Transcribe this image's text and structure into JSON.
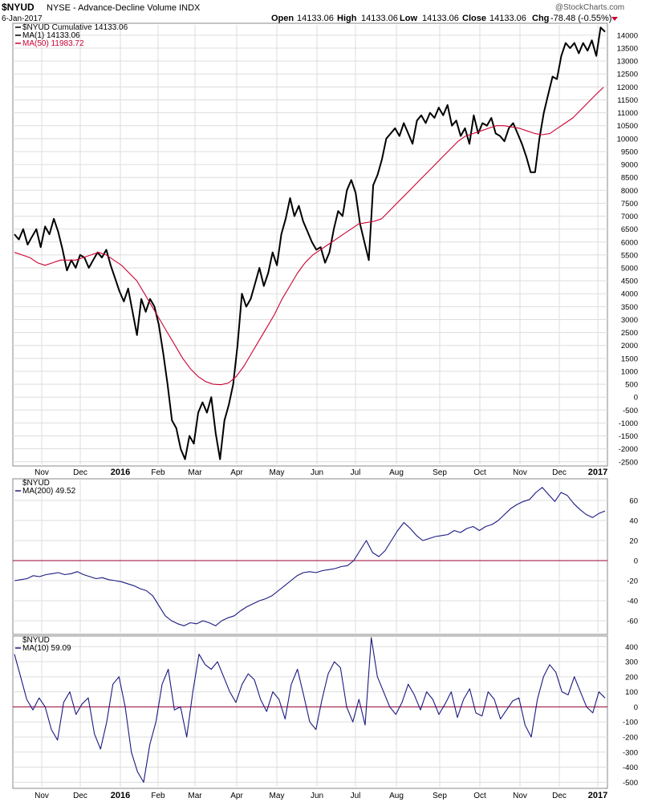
{
  "header": {
    "symbol": "$NYUD",
    "description": "NYSE - Advance-Decline Volume INDX",
    "date": "6-Jan-2017",
    "open_label": "Open",
    "open_value": "14133.06",
    "high_label": "High",
    "high_value": "14133.06",
    "low_label": "Low",
    "low_value": "14133.06",
    "close_label": "Close",
    "close_value": "14133.06",
    "chg_label": "Chg",
    "chg_value": "-78.48 (-0.55%)",
    "brand": "@StockCharts.com"
  },
  "colors": {
    "price": "#000000",
    "ma50": "#cc0033",
    "blue": "#1a1a80",
    "zero": "#990033",
    "grid": "#dddddd"
  },
  "chart_data": [
    {
      "type": "line",
      "panel": "main",
      "x_labels": [
        "Nov",
        "Dec",
        "2016",
        "Feb",
        "Mar",
        "Apr",
        "May",
        "Jun",
        "Jul",
        "Aug",
        "Sep",
        "Oct",
        "Nov",
        "Dec",
        "2017"
      ],
      "y_ticks": [
        14000,
        13500,
        13000,
        12500,
        12000,
        11500,
        11000,
        10500,
        10000,
        9500,
        9000,
        8500,
        8000,
        7500,
        7000,
        6500,
        6000,
        5500,
        5000,
        4500,
        4000,
        3500,
        3000,
        2500,
        2000,
        1500,
        1000,
        500,
        0,
        -500,
        -1000,
        -1500,
        -2000,
        -2500
      ],
      "ylim": [
        -2600,
        14400
      ],
      "legend": [
        {
          "label": "$NYUD Cumulative 14133.06"
        },
        {
          "label": "MA(1) 14133.06"
        },
        {
          "label": "MA(50) 11983.72"
        }
      ],
      "series": [
        {
          "name": "$NYUD Cumulative",
          "color": "#000000",
          "values": [
            6300,
            6100,
            6500,
            5900,
            6200,
            6500,
            5800,
            6600,
            6300,
            6900,
            6400,
            5700,
            4900,
            5300,
            5000,
            5500,
            5400,
            5000,
            5300,
            5600,
            5400,
            5700,
            5100,
            4600,
            4100,
            3700,
            4200,
            3300,
            2400,
            3800,
            3300,
            3800,
            3500,
            2800,
            1700,
            500,
            -900,
            -1200,
            -2000,
            -2400,
            -1500,
            -1800,
            -600,
            -200,
            -600,
            0,
            -1400,
            -2400,
            -900,
            -300,
            500,
            2000,
            4000,
            3500,
            3800,
            4400,
            5000,
            4300,
            4800,
            5600,
            5100,
            6300,
            6900,
            7700,
            7000,
            7400,
            6800,
            6400,
            6000,
            5700,
            5800,
            5200,
            5600,
            6500,
            7200,
            7000,
            8000,
            8400,
            7900,
            6700,
            6000,
            5300,
            8200,
            8600,
            9200,
            10000,
            10200,
            10400,
            10100,
            10600,
            10200,
            9800,
            10700,
            10900,
            10600,
            11000,
            10800,
            11200,
            10900,
            11300,
            10500,
            10700,
            10100,
            10400,
            9800,
            10900,
            10200,
            10600,
            10500,
            10800,
            10200,
            10100,
            9900,
            10400,
            10600,
            10200,
            9800,
            9300,
            8700,
            8700,
            10000,
            11000,
            11700,
            12400,
            12300,
            13200,
            13700,
            13500,
            13700,
            13300,
            13700,
            13400,
            13800,
            13200,
            14300,
            14133
          ]
        },
        {
          "name": "MA(50)",
          "color": "#cc0033",
          "values": [
            5600,
            5500,
            5400,
            5200,
            5100,
            5200,
            5300,
            5300,
            5300,
            5400,
            5500,
            5600,
            5500,
            5300,
            5100,
            4800,
            4500,
            4000,
            3500,
            3000,
            2500,
            2000,
            1500,
            1100,
            800,
            600,
            500,
            480,
            550,
            800,
            1200,
            1700,
            2200,
            2700,
            3200,
            3800,
            4300,
            4800,
            5200,
            5500,
            5700,
            5900,
            6100,
            6300,
            6500,
            6700,
            6750,
            6800,
            6900,
            7200,
            7500,
            7800,
            8100,
            8400,
            8700,
            9000,
            9300,
            9600,
            9900,
            10100,
            10200,
            10300,
            10400,
            10500,
            10500,
            10450,
            10400,
            10300,
            10200,
            10150,
            10200,
            10400,
            10600,
            10800,
            11100,
            11400,
            11700,
            11983
          ]
        }
      ]
    },
    {
      "type": "line",
      "panel": "ma200",
      "x_labels": [],
      "y_ticks": [
        60,
        40,
        20,
        0,
        -20,
        -40,
        -60
      ],
      "ylim": [
        -72,
        80
      ],
      "legend": [
        {
          "label": "$NYUD"
        },
        {
          "label": "MA(200) 49.52"
        }
      ],
      "series": [
        {
          "name": "MA(200)",
          "color": "#1a1a80",
          "values": [
            -20,
            -19,
            -18,
            -15,
            -16,
            -14,
            -13,
            -12,
            -14,
            -13,
            -11,
            -14,
            -16,
            -18,
            -17,
            -19,
            -20,
            -21,
            -23,
            -25,
            -28,
            -30,
            -35,
            -45,
            -55,
            -60,
            -63,
            -65,
            -62,
            -63,
            -60,
            -62,
            -65,
            -60,
            -57,
            -55,
            -50,
            -46,
            -43,
            -40,
            -38,
            -35,
            -30,
            -25,
            -20,
            -15,
            -12,
            -11,
            -12,
            -10,
            -9,
            -8,
            -6,
            -5,
            0,
            10,
            20,
            8,
            4,
            10,
            20,
            30,
            38,
            32,
            25,
            20,
            22,
            24,
            25,
            26,
            30,
            28,
            32,
            34,
            30,
            34,
            36,
            40,
            46,
            52,
            56,
            59,
            61,
            68,
            73,
            66,
            59,
            68,
            65,
            57,
            51,
            46,
            43,
            47,
            49.52
          ]
        }
      ]
    },
    {
      "type": "line",
      "panel": "ma10",
      "x_labels": [
        "Nov",
        "Dec",
        "2016",
        "Feb",
        "Mar",
        "Apr",
        "May",
        "Jun",
        "Jul",
        "Aug",
        "Sep",
        "Oct",
        "Nov",
        "Dec",
        "2017"
      ],
      "y_ticks": [
        400,
        300,
        200,
        100,
        0,
        -100,
        -200,
        -300,
        -400,
        -500
      ],
      "ylim": [
        -530,
        460
      ],
      "legend": [
        {
          "label": "$NYUD"
        },
        {
          "label": "MA(10) 59.09"
        }
      ],
      "series": [
        {
          "name": "MA(10)",
          "color": "#1a1a80",
          "values": [
            350,
            200,
            50,
            -20,
            60,
            0,
            -150,
            -220,
            30,
            100,
            -50,
            20,
            60,
            -180,
            -280,
            -100,
            150,
            200,
            0,
            -300,
            -430,
            -500,
            -250,
            -100,
            150,
            250,
            -20,
            0,
            -200,
            100,
            350,
            280,
            250,
            300,
            200,
            100,
            30,
            150,
            220,
            180,
            50,
            -30,
            100,
            50,
            -80,
            150,
            250,
            80,
            -100,
            -150,
            50,
            220,
            300,
            260,
            0,
            -100,
            50,
            -120,
            460,
            200,
            100,
            0,
            -50,
            30,
            150,
            80,
            -20,
            100,
            50,
            -50,
            20,
            100,
            -70,
            50,
            120,
            -40,
            -60,
            100,
            50,
            -80,
            -20,
            40,
            60,
            -120,
            -200,
            50,
            200,
            280,
            230,
            100,
            80,
            200,
            100,
            0,
            -40,
            100,
            59.09
          ]
        }
      ]
    }
  ]
}
